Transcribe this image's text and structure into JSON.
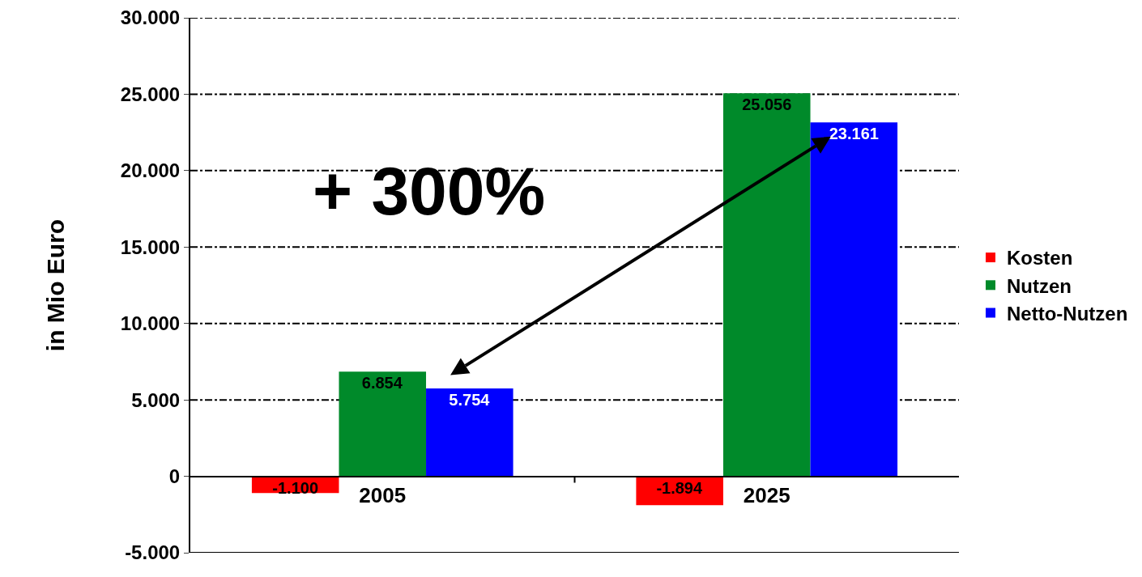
{
  "chart_data": {
    "type": "bar",
    "ylabel": "in Mio Euro",
    "categories": [
      "2005",
      "2025"
    ],
    "series": [
      {
        "name": "Kosten",
        "color": "#ff0000",
        "values": [
          -1100,
          -1894
        ],
        "value_labels": [
          "-1.100",
          "-1.894"
        ]
      },
      {
        "name": "Nutzen",
        "color": "#008a2a",
        "values": [
          6854,
          25056
        ],
        "value_labels": [
          "6.854",
          "25.056"
        ]
      },
      {
        "name": "Netto-Nutzen",
        "color": "#0000ff",
        "values": [
          5754,
          23161
        ],
        "value_labels": [
          "5.754",
          "23.161"
        ]
      }
    ],
    "ylim": [
      -5000,
      30000
    ],
    "yticks": [
      {
        "value": -5000,
        "label": "-5.000"
      },
      {
        "value": 0,
        "label": "0"
      },
      {
        "value": 5000,
        "label": "5.000"
      },
      {
        "value": 10000,
        "label": "10.000"
      },
      {
        "value": 15000,
        "label": "15.000"
      },
      {
        "value": 20000,
        "label": "20.000"
      },
      {
        "value": 25000,
        "label": "25.000"
      },
      {
        "value": 30000,
        "label": "30.000"
      }
    ],
    "grid": "y",
    "legend": "right",
    "line_style": "dashed",
    "annotations": [
      "+ 300%"
    ]
  }
}
